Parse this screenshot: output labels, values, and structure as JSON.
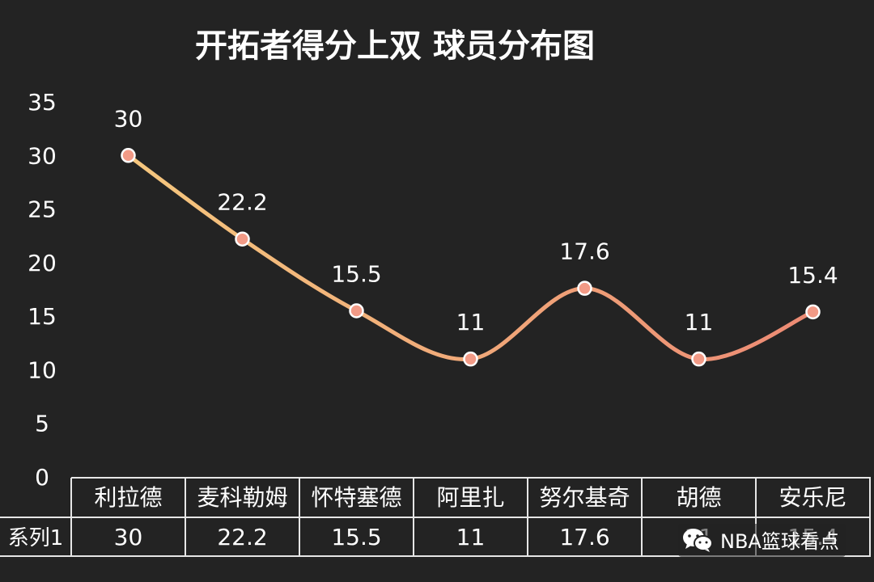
{
  "chart_data": {
    "type": "line",
    "title": "开拓者得分上双 球员分布图",
    "categories": [
      "利拉德",
      "麦科勒姆",
      "怀特塞德",
      "阿里扎",
      "努尔基奇",
      "胡德",
      "安乐尼"
    ],
    "series": [
      {
        "name": "系列1",
        "values": [
          30,
          22.2,
          15.5,
          11,
          17.6,
          11,
          15.4
        ]
      }
    ],
    "data_labels": [
      "30",
      "22.2",
      "15.5",
      "11",
      "17.6",
      "11",
      "15.4"
    ],
    "y_ticks": [
      "0",
      "5",
      "10",
      "15",
      "20",
      "25",
      "30",
      "35"
    ],
    "ylim": [
      0,
      35
    ],
    "grid": false,
    "smooth": true,
    "data_table": true,
    "colors": {
      "line_start": "#f5c77e",
      "line_end": "#ec8a74",
      "marker_fill": "#f29a86",
      "marker_stroke": "#ffffff",
      "background": "#232323",
      "text": "#ffffff"
    }
  },
  "watermark": {
    "icon": "wechat-icon",
    "text": "NBA篮球看点"
  }
}
